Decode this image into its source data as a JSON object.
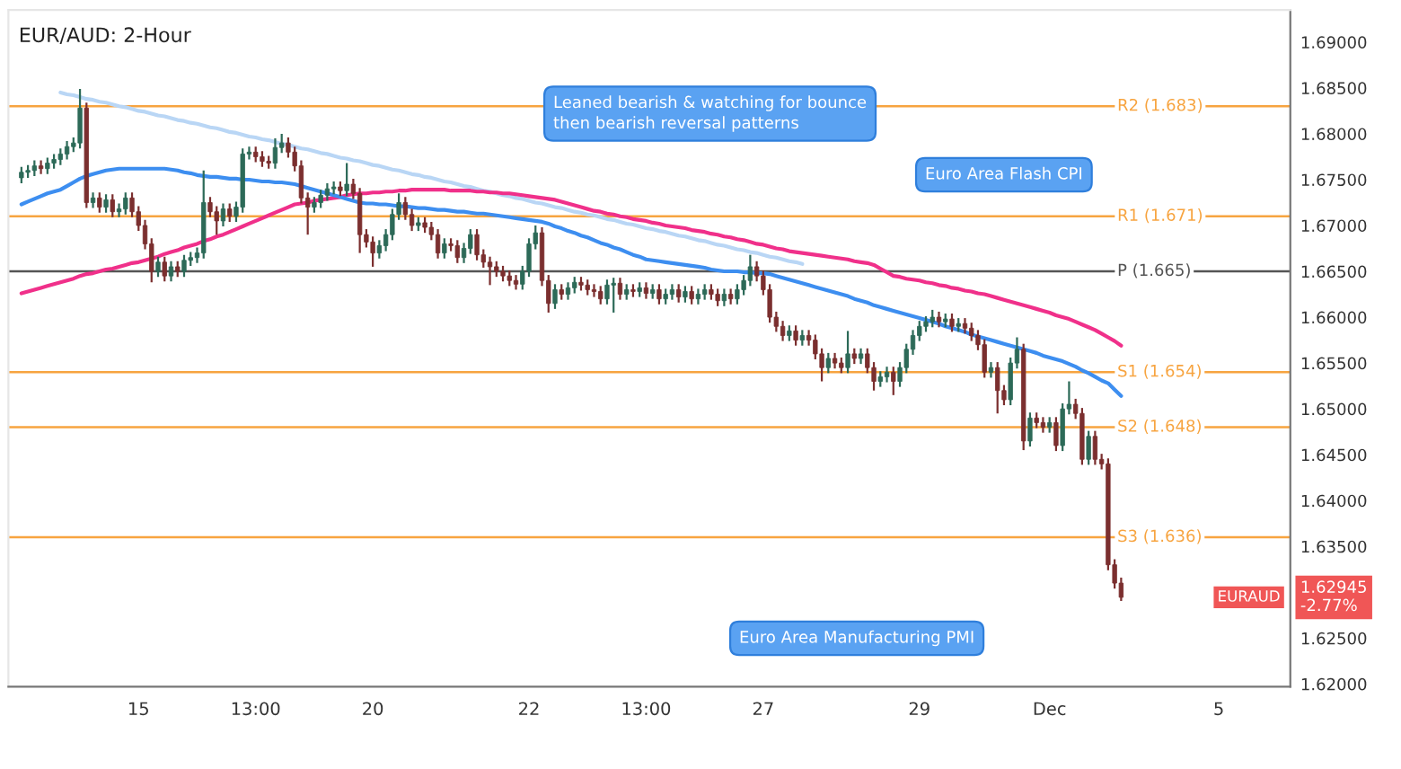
{
  "chart_data": {
    "type": "candlestick",
    "title": "EUR/AUD: 2-Hour",
    "categories": [
      null,
      null,
      null,
      null,
      null,
      null,
      null,
      null,
      null,
      null,
      null,
      null,
      null,
      null,
      null,
      null,
      null,
      null,
      "15",
      null,
      null,
      null,
      null,
      null,
      null,
      null,
      null,
      null,
      null,
      null,
      null,
      null,
      null,
      null,
      null,
      null,
      "13:00",
      null,
      null,
      null,
      null,
      null,
      null,
      null,
      null,
      null,
      null,
      null,
      null,
      null,
      null,
      null,
      null,
      null,
      "20",
      null,
      null,
      null,
      null,
      null,
      null,
      null,
      null,
      null,
      null,
      null,
      null,
      null,
      null,
      null,
      null,
      null,
      null,
      null,
      null,
      null,
      null,
      null,
      "22",
      null,
      null,
      null,
      null,
      null,
      null,
      null,
      null,
      null,
      null,
      null,
      null,
      null,
      null,
      null,
      null,
      null,
      "13:00",
      null,
      null,
      null,
      null,
      null,
      null,
      null,
      null,
      null,
      null,
      null,
      null,
      null,
      null,
      null,
      null,
      null,
      "27",
      null,
      null,
      null,
      null,
      null,
      null,
      null,
      null,
      null,
      null,
      null,
      null,
      null,
      null,
      null,
      null,
      null,
      null,
      null,
      null,
      null,
      null,
      null,
      "29",
      null,
      null,
      null,
      null,
      null,
      null,
      null,
      null,
      null,
      null,
      null,
      null,
      null,
      null,
      null,
      null,
      null,
      null,
      null,
      "Dec",
      null,
      null,
      null,
      null,
      null,
      null,
      null,
      null,
      null,
      null,
      null,
      null,
      null,
      null,
      null,
      null,
      null,
      null,
      null,
      null,
      null,
      null,
      null,
      null,
      null,
      "5",
      null,
      null,
      null,
      null,
      null,
      null,
      null,
      null,
      null,
      null
    ],
    "ohlc": [
      [
        1.6752,
        1.6764,
        1.6746,
        1.6758
      ],
      [
        1.6758,
        1.6766,
        1.6752,
        1.676
      ],
      [
        1.676,
        1.6771,
        1.6754,
        1.6765
      ],
      [
        1.6765,
        1.6771,
        1.6756,
        1.6762
      ],
      [
        1.6762,
        1.6774,
        1.6756,
        1.6768
      ],
      [
        1.6768,
        1.6778,
        1.6762,
        1.6772
      ],
      [
        1.6772,
        1.6784,
        1.6766,
        1.6778
      ],
      [
        1.6778,
        1.6792,
        1.6772,
        1.6786
      ],
      [
        1.6786,
        1.6796,
        1.678,
        1.679
      ],
      [
        1.679,
        1.6849,
        1.6784,
        1.6828
      ],
      [
        1.6828,
        1.6834,
        1.6719,
        1.6725
      ],
      [
        1.6725,
        1.6736,
        1.6719,
        1.673
      ],
      [
        1.673,
        1.6736,
        1.6714,
        1.672
      ],
      [
        1.672,
        1.6734,
        1.6714,
        1.6728
      ],
      [
        1.6728,
        1.6734,
        1.6709,
        1.6715
      ],
      [
        1.6715,
        1.6724,
        1.6709,
        1.6718
      ],
      [
        1.6718,
        1.6736,
        1.6712,
        1.673
      ],
      [
        1.673,
        1.6736,
        1.6709,
        1.6715
      ],
      [
        1.6715,
        1.6721,
        1.6694,
        1.67
      ],
      [
        1.67,
        1.6706,
        1.6674,
        1.668
      ],
      [
        1.668,
        1.6686,
        1.6638,
        1.665
      ],
      [
        1.665,
        1.6666,
        1.6644,
        1.666
      ],
      [
        1.666,
        1.6666,
        1.6639,
        1.6645
      ],
      [
        1.6645,
        1.6661,
        1.6639,
        1.6655
      ],
      [
        1.6655,
        1.6661,
        1.6644,
        1.665
      ],
      [
        1.665,
        1.6668,
        1.6644,
        1.6662
      ],
      [
        1.6662,
        1.6671,
        1.6656,
        1.6665
      ],
      [
        1.6665,
        1.6676,
        1.6659,
        1.667
      ],
      [
        1.667,
        1.676,
        1.6664,
        1.6725
      ],
      [
        1.6725,
        1.6731,
        1.6709,
        1.6715
      ],
      [
        1.6715,
        1.6721,
        1.669,
        1.6705
      ],
      [
        1.6705,
        1.6724,
        1.6699,
        1.6718
      ],
      [
        1.6718,
        1.6724,
        1.6704,
        1.671
      ],
      [
        1.671,
        1.6726,
        1.6704,
        1.672
      ],
      [
        1.672,
        1.6784,
        1.6714,
        1.6778
      ],
      [
        1.6778,
        1.6786,
        1.6772,
        1.678
      ],
      [
        1.678,
        1.6786,
        1.6769,
        1.6775
      ],
      [
        1.6775,
        1.6781,
        1.6764,
        1.677
      ],
      [
        1.677,
        1.6776,
        1.6762,
        1.6768
      ],
      [
        1.6768,
        1.6795,
        1.6762,
        1.6785
      ],
      [
        1.6785,
        1.68,
        1.6779,
        1.679
      ],
      [
        1.679,
        1.6796,
        1.6774,
        1.678
      ],
      [
        1.678,
        1.6786,
        1.6759,
        1.6765
      ],
      [
        1.6765,
        1.6771,
        1.6724,
        1.673
      ],
      [
        1.673,
        1.6736,
        1.669,
        1.672
      ],
      [
        1.672,
        1.6731,
        1.6714,
        1.6725
      ],
      [
        1.6725,
        1.6739,
        1.6719,
        1.6733
      ],
      [
        1.6733,
        1.6746,
        1.6727,
        1.674
      ],
      [
        1.674,
        1.6748,
        1.6734,
        1.6742
      ],
      [
        1.6742,
        1.6748,
        1.6732,
        1.6738
      ],
      [
        1.6738,
        1.6768,
        1.6732,
        1.6745
      ],
      [
        1.6745,
        1.6751,
        1.6729,
        1.6735
      ],
      [
        1.6735,
        1.6741,
        1.667,
        1.669
      ],
      [
        1.669,
        1.6696,
        1.6676,
        1.6682
      ],
      [
        1.6682,
        1.6688,
        1.6655,
        1.667
      ],
      [
        1.667,
        1.6684,
        1.6664,
        1.6678
      ],
      [
        1.6678,
        1.6696,
        1.6672,
        1.669
      ],
      [
        1.669,
        1.6718,
        1.6684,
        1.6712
      ],
      [
        1.6712,
        1.6735,
        1.6706,
        1.6725
      ],
      [
        1.6725,
        1.6731,
        1.6706,
        1.6712
      ],
      [
        1.6712,
        1.6718,
        1.6694,
        1.67
      ],
      [
        1.67,
        1.6709,
        1.6694,
        1.6703
      ],
      [
        1.6703,
        1.6709,
        1.6692,
        1.6698
      ],
      [
        1.6698,
        1.6704,
        1.6684,
        1.669
      ],
      [
        1.669,
        1.6696,
        1.6664,
        1.667
      ],
      [
        1.667,
        1.6686,
        1.6664,
        1.668
      ],
      [
        1.668,
        1.6686,
        1.6672,
        1.6678
      ],
      [
        1.6678,
        1.6684,
        1.6659,
        1.6665
      ],
      [
        1.6665,
        1.6681,
        1.6659,
        1.6675
      ],
      [
        1.6675,
        1.6696,
        1.6669,
        1.669
      ],
      [
        1.669,
        1.6696,
        1.6662,
        1.6668
      ],
      [
        1.6668,
        1.6674,
        1.6654,
        1.666
      ],
      [
        1.666,
        1.6666,
        1.6635,
        1.6655
      ],
      [
        1.6655,
        1.6661,
        1.6644,
        1.665
      ],
      [
        1.665,
        1.6656,
        1.6639,
        1.6645
      ],
      [
        1.6645,
        1.6651,
        1.6634,
        1.664
      ],
      [
        1.664,
        1.6646,
        1.663,
        1.6636
      ],
      [
        1.6636,
        1.6656,
        1.663,
        1.665
      ],
      [
        1.665,
        1.6686,
        1.6644,
        1.668
      ],
      [
        1.668,
        1.67,
        1.6674,
        1.6692
      ],
      [
        1.6692,
        1.6698,
        1.6634,
        1.664
      ],
      [
        1.664,
        1.6646,
        1.6605,
        1.6615
      ],
      [
        1.6615,
        1.6636,
        1.6609,
        1.663
      ],
      [
        1.663,
        1.6636,
        1.6619,
        1.6625
      ],
      [
        1.6625,
        1.6638,
        1.6619,
        1.6632
      ],
      [
        1.6632,
        1.6644,
        1.6626,
        1.6638
      ],
      [
        1.6638,
        1.6644,
        1.6629,
        1.6635
      ],
      [
        1.6635,
        1.6641,
        1.6624,
        1.663
      ],
      [
        1.663,
        1.6636,
        1.6622,
        1.6628
      ],
      [
        1.6628,
        1.6634,
        1.6614,
        1.662
      ],
      [
        1.662,
        1.6641,
        1.6614,
        1.6635
      ],
      [
        1.6635,
        1.6643,
        1.6605,
        1.6637
      ],
      [
        1.6637,
        1.6643,
        1.6619,
        1.6625
      ],
      [
        1.6625,
        1.6636,
        1.6619,
        1.663
      ],
      [
        1.663,
        1.6636,
        1.6622,
        1.6628
      ],
      [
        1.6628,
        1.6638,
        1.6622,
        1.6632
      ],
      [
        1.6632,
        1.6638,
        1.662,
        1.6626
      ],
      [
        1.6626,
        1.6636,
        1.662,
        1.663
      ],
      [
        1.663,
        1.6636,
        1.6614,
        1.662
      ],
      [
        1.662,
        1.6631,
        1.6614,
        1.6625
      ],
      [
        1.6625,
        1.6636,
        1.6619,
        1.663
      ],
      [
        1.663,
        1.6636,
        1.6616,
        1.6622
      ],
      [
        1.6622,
        1.6634,
        1.6616,
        1.6628
      ],
      [
        1.6628,
        1.6634,
        1.6614,
        1.662
      ],
      [
        1.662,
        1.6631,
        1.6614,
        1.6625
      ],
      [
        1.6625,
        1.6636,
        1.6619,
        1.663
      ],
      [
        1.663,
        1.6636,
        1.6619,
        1.6625
      ],
      [
        1.6625,
        1.6631,
        1.6612,
        1.6618
      ],
      [
        1.6618,
        1.6631,
        1.6612,
        1.6625
      ],
      [
        1.6625,
        1.6631,
        1.6614,
        1.662
      ],
      [
        1.662,
        1.6636,
        1.6614,
        1.663
      ],
      [
        1.663,
        1.6646,
        1.6624,
        1.664
      ],
      [
        1.664,
        1.6668,
        1.6634,
        1.6655
      ],
      [
        1.6655,
        1.6661,
        1.6639,
        1.6645
      ],
      [
        1.6645,
        1.6651,
        1.6624,
        1.663
      ],
      [
        1.663,
        1.6636,
        1.6594,
        1.66
      ],
      [
        1.66,
        1.6606,
        1.6584,
        1.659
      ],
      [
        1.659,
        1.6596,
        1.6574,
        1.658
      ],
      [
        1.658,
        1.6591,
        1.6574,
        1.6585
      ],
      [
        1.6585,
        1.6591,
        1.6569,
        1.6575
      ],
      [
        1.6575,
        1.6586,
        1.6569,
        1.658
      ],
      [
        1.658,
        1.6586,
        1.6569,
        1.6575
      ],
      [
        1.6575,
        1.6581,
        1.6554,
        1.656
      ],
      [
        1.656,
        1.6566,
        1.653,
        1.6545
      ],
      [
        1.6545,
        1.6561,
        1.6539,
        1.6555
      ],
      [
        1.6555,
        1.6561,
        1.6544,
        1.655
      ],
      [
        1.655,
        1.6556,
        1.6539,
        1.6545
      ],
      [
        1.6545,
        1.6585,
        1.6539,
        1.656
      ],
      [
        1.656,
        1.6566,
        1.6549,
        1.6555
      ],
      [
        1.6555,
        1.6566,
        1.6549,
        1.656
      ],
      [
        1.656,
        1.6566,
        1.6539,
        1.6545
      ],
      [
        1.6545,
        1.6551,
        1.652,
        1.653
      ],
      [
        1.653,
        1.6541,
        1.6524,
        1.6535
      ],
      [
        1.6535,
        1.6546,
        1.6529,
        1.654
      ],
      [
        1.654,
        1.6546,
        1.6515,
        1.653
      ],
      [
        1.653,
        1.6551,
        1.6524,
        1.6545
      ],
      [
        1.6545,
        1.6571,
        1.6539,
        1.6565
      ],
      [
        1.6565,
        1.6586,
        1.6559,
        1.658
      ],
      [
        1.658,
        1.6596,
        1.6574,
        1.659
      ],
      [
        1.659,
        1.6601,
        1.6584,
        1.6595
      ],
      [
        1.6595,
        1.6608,
        1.6589,
        1.66
      ],
      [
        1.66,
        1.6606,
        1.6589,
        1.6595
      ],
      [
        1.6595,
        1.6604,
        1.6589,
        1.6598
      ],
      [
        1.6598,
        1.6604,
        1.6584,
        1.659
      ],
      [
        1.659,
        1.6599,
        1.6584,
        1.6593
      ],
      [
        1.6593,
        1.6599,
        1.6582,
        1.6588
      ],
      [
        1.6588,
        1.6594,
        1.6574,
        1.658
      ],
      [
        1.658,
        1.6586,
        1.6564,
        1.657
      ],
      [
        1.657,
        1.6576,
        1.6534,
        1.654
      ],
      [
        1.654,
        1.6551,
        1.6534,
        1.6545
      ],
      [
        1.6545,
        1.6551,
        1.6495,
        1.652
      ],
      [
        1.652,
        1.6526,
        1.6504,
        1.651
      ],
      [
        1.651,
        1.6556,
        1.6504,
        1.655
      ],
      [
        1.655,
        1.6578,
        1.6544,
        1.6565
      ],
      [
        1.6565,
        1.6571,
        1.6455,
        1.6465
      ],
      [
        1.6465,
        1.6496,
        1.6459,
        1.649
      ],
      [
        1.649,
        1.6496,
        1.6479,
        1.6485
      ],
      [
        1.6485,
        1.6491,
        1.6474,
        1.648
      ],
      [
        1.648,
        1.6491,
        1.6474,
        1.6485
      ],
      [
        1.6485,
        1.6491,
        1.6454,
        1.646
      ],
      [
        1.646,
        1.6506,
        1.6454,
        1.65
      ],
      [
        1.65,
        1.653,
        1.6494,
        1.6505
      ],
      [
        1.6505,
        1.6511,
        1.6489,
        1.6495
      ],
      [
        1.6495,
        1.6501,
        1.6439,
        1.6445
      ],
      [
        1.6445,
        1.6476,
        1.6439,
        1.647
      ],
      [
        1.647,
        1.6476,
        1.6439,
        1.6445
      ],
      [
        1.6445,
        1.6451,
        1.6434,
        1.644
      ],
      [
        1.644,
        1.6446,
        1.6324,
        1.633
      ],
      [
        1.633,
        1.6336,
        1.6304,
        1.631
      ],
      [
        1.631,
        1.6316,
        1.62905,
        1.62945
      ],
      null,
      null,
      null,
      null,
      null,
      null,
      null,
      null,
      null,
      null,
      null,
      null,
      null,
      null,
      null,
      null,
      null,
      null,
      null,
      null,
      null,
      null,
      null,
      null,
      null
    ],
    "colors": [
      "#2d6a58",
      "#2d6a58",
      "#2d6a58",
      "#7b2f2f",
      "#2d6a58",
      "#2d6a58",
      "#2d6a58",
      "#2d6a58",
      "#2d6a58",
      "#2d6a58",
      "#7b2f2f",
      "#2d6a58",
      "#7b2f2f",
      "#2d6a58",
      "#7b2f2f",
      "#2d6a58",
      "#2d6a58",
      "#7b2f2f",
      "#7b2f2f",
      "#7b2f2f",
      "#7b2f2f",
      "#2d6a58",
      "#7b2f2f",
      "#2d6a58",
      "#7b2f2f",
      "#2d6a58",
      "#2d6a58",
      "#2d6a58",
      "#2d6a58",
      "#7b2f2f",
      "#7b2f2f",
      "#2d6a58",
      "#7b2f2f",
      "#2d6a58",
      "#2d6a58",
      "#2d6a58",
      "#7b2f2f",
      "#7b2f2f",
      "#7b2f2f",
      "#2d6a58",
      "#2d6a58",
      "#7b2f2f",
      "#7b2f2f",
      "#7b2f2f",
      "#7b2f2f",
      "#2d6a58",
      "#2d6a58",
      "#2d6a58",
      "#2d6a58",
      "#7b2f2f",
      "#2d6a58",
      "#7b2f2f",
      "#7b2f2f",
      "#7b2f2f",
      "#7b2f2f",
      "#2d6a58",
      "#2d6a58",
      "#2d6a58",
      "#2d6a58",
      "#7b2f2f",
      "#7b2f2f",
      "#2d6a58",
      "#7b2f2f",
      "#7b2f2f",
      "#7b2f2f",
      "#2d6a58",
      "#7b2f2f",
      "#7b2f2f",
      "#2d6a58",
      "#2d6a58",
      "#7b2f2f",
      "#7b2f2f",
      "#7b2f2f",
      "#7b2f2f",
      "#7b2f2f",
      "#7b2f2f",
      "#7b2f2f",
      "#2d6a58",
      "#2d6a58",
      "#2d6a58",
      "#7b2f2f",
      "#7b2f2f",
      "#2d6a58",
      "#7b2f2f",
      "#2d6a58",
      "#2d6a58",
      "#7b2f2f",
      "#7b2f2f",
      "#7b2f2f",
      "#7b2f2f",
      "#2d6a58",
      "#2d6a58",
      "#7b2f2f",
      "#2d6a58",
      "#7b2f2f",
      "#2d6a58",
      "#7b2f2f",
      "#2d6a58",
      "#7b2f2f",
      "#2d6a58",
      "#2d6a58",
      "#7b2f2f",
      "#2d6a58",
      "#7b2f2f",
      "#2d6a58",
      "#2d6a58",
      "#7b2f2f",
      "#7b2f2f",
      "#2d6a58",
      "#7b2f2f",
      "#2d6a58",
      "#2d6a58",
      "#2d6a58",
      "#7b2f2f",
      "#7b2f2f",
      "#7b2f2f",
      "#7b2f2f",
      "#7b2f2f",
      "#2d6a58",
      "#7b2f2f",
      "#2d6a58",
      "#7b2f2f",
      "#7b2f2f",
      "#7b2f2f",
      "#2d6a58",
      "#7b2f2f",
      "#7b2f2f",
      "#2d6a58",
      "#7b2f2f",
      "#2d6a58",
      "#7b2f2f",
      "#7b2f2f",
      "#2d6a58",
      "#2d6a58",
      "#7b2f2f",
      "#2d6a58",
      "#2d6a58",
      "#2d6a58",
      "#2d6a58",
      "#2d6a58",
      "#2d6a58",
      "#7b2f2f",
      "#2d6a58",
      "#7b2f2f",
      "#2d6a58",
      "#7b2f2f",
      "#7b2f2f",
      "#7b2f2f",
      "#7b2f2f",
      "#2d6a58",
      "#7b2f2f",
      "#7b2f2f",
      "#2d6a58",
      "#2d6a58",
      "#7b2f2f",
      "#2d6a58",
      "#7b2f2f",
      "#7b2f2f",
      "#2d6a58",
      "#7b2f2f",
      "#2d6a58",
      "#2d6a58",
      "#7b2f2f",
      "#7b2f2f",
      "#2d6a58",
      "#7b2f2f",
      "#7b2f2f",
      "#7b2f2f",
      "#7b2f2f",
      "#7b2f2f",
      null,
      null,
      null,
      null,
      null,
      null,
      null,
      null,
      null,
      null,
      null,
      null,
      null,
      null,
      null,
      null,
      null,
      null,
      null,
      null,
      null,
      null,
      null,
      null,
      null
    ],
    "series": [
      {
        "type": "line",
        "color": "#b9d6f5",
        "values": [
          null,
          null,
          null,
          null,
          null,
          null,
          1.6845,
          1.6843,
          1.6842,
          1.684,
          1.6838,
          1.6837,
          1.6835,
          1.6834,
          1.6832,
          1.683,
          1.6829,
          1.6827,
          1.6825,
          1.6824,
          1.6822,
          1.682,
          1.6819,
          1.6817,
          1.6815,
          1.6814,
          1.6812,
          1.6811,
          1.6809,
          1.6807,
          1.6806,
          1.6804,
          1.6802,
          1.6801,
          1.6799,
          1.6797,
          1.6796,
          1.6794,
          1.6793,
          1.6791,
          1.6789,
          1.6788,
          1.6786,
          1.6784,
          1.6783,
          1.6781,
          1.6779,
          1.6778,
          1.6776,
          1.6774,
          1.6773,
          1.6771,
          1.677,
          1.6768,
          1.6766,
          1.6765,
          1.6763,
          1.6761,
          1.676,
          1.6758,
          1.6756,
          1.6755,
          1.6753,
          1.6752,
          1.675,
          1.6748,
          1.6747,
          1.6745,
          1.6743,
          1.6742,
          1.674,
          1.6738,
          1.6737,
          1.6735,
          1.6733,
          1.6732,
          1.673,
          1.6729,
          1.6727,
          1.6725,
          1.6724,
          1.6722,
          1.672,
          1.6719,
          1.6717,
          1.6715,
          1.6714,
          1.6712,
          1.6711,
          1.6709,
          1.6707,
          1.6706,
          1.6704,
          1.6702,
          1.6701,
          1.6699,
          1.6697,
          1.6696,
          1.6694,
          1.6693,
          1.6691,
          1.6689,
          1.6688,
          1.6686,
          1.6684,
          1.6683,
          1.6681,
          1.6679,
          1.6678,
          1.6676,
          1.6674,
          1.6673,
          1.6671,
          1.667,
          1.6668,
          1.6666,
          1.6665,
          1.6663,
          1.6661,
          1.666,
          1.6658,
          null,
          null,
          null,
          null,
          null,
          null,
          null,
          null,
          null,
          null,
          null,
          null,
          null,
          null,
          null,
          null,
          null,
          null,
          null,
          null,
          null,
          null,
          null,
          null,
          null,
          null,
          null,
          null,
          null,
          null,
          null,
          null,
          null,
          null,
          null,
          null,
          null,
          null,
          null,
          null,
          null,
          null,
          null,
          null,
          null,
          null,
          null,
          null,
          null,
          null,
          null,
          null,
          null,
          null,
          null,
          null,
          null,
          null,
          null,
          null,
          null,
          null,
          null,
          null,
          null,
          null,
          null,
          null,
          null,
          null,
          null,
          null,
          null,
          null
        ]
      },
      {
        "type": "line",
        "color": "#f0308a",
        "values": [
          1.6626,
          1.6628,
          1.663,
          1.6632,
          1.6634,
          1.6636,
          1.6638,
          1.664,
          1.6642,
          1.6645,
          1.6647,
          1.6648,
          1.665,
          1.6652,
          1.6653,
          1.6655,
          1.6657,
          1.6659,
          1.666,
          1.6662,
          1.6664,
          1.6666,
          1.6669,
          1.6671,
          1.6673,
          1.6676,
          1.6678,
          1.668,
          1.6683,
          1.6685,
          1.6688,
          1.669,
          1.6693,
          1.6696,
          1.6699,
          1.6702,
          1.6705,
          1.6708,
          1.6711,
          1.6714,
          1.6717,
          1.672,
          1.6723,
          1.6724,
          1.6725,
          1.6727,
          1.6728,
          1.6729,
          1.673,
          1.6731,
          1.6733,
          1.6734,
          1.6735,
          1.6735,
          1.6736,
          1.6736,
          1.6737,
          1.6737,
          1.6738,
          1.6738,
          1.6739,
          1.6739,
          1.6739,
          1.6739,
          1.6739,
          1.6739,
          1.6738,
          1.6738,
          1.6738,
          1.6738,
          1.6737,
          1.6737,
          1.6736,
          1.6736,
          1.6735,
          1.6735,
          1.6734,
          1.6733,
          1.6732,
          1.6731,
          1.673,
          1.6729,
          1.6728,
          1.6726,
          1.6724,
          1.6722,
          1.672,
          1.6718,
          1.6716,
          1.6715,
          1.6713,
          1.6712,
          1.671,
          1.6709,
          1.6707,
          1.6706,
          1.6705,
          1.6703,
          1.6702,
          1.67,
          1.6699,
          1.6698,
          1.6697,
          1.6695,
          1.6694,
          1.6693,
          1.6691,
          1.669,
          1.6688,
          1.6687,
          1.6685,
          1.6684,
          1.6682,
          1.668,
          1.6679,
          1.6677,
          1.6675,
          1.6674,
          1.6672,
          1.6671,
          1.667,
          1.6669,
          1.6668,
          1.6667,
          1.6666,
          1.6665,
          1.6664,
          1.6663,
          1.6661,
          1.666,
          1.6659,
          1.6657,
          1.6653,
          1.6649,
          1.6645,
          1.6644,
          1.6642,
          1.6641,
          1.664,
          1.6638,
          1.6637,
          1.6635,
          1.6634,
          1.6632,
          1.6631,
          1.6629,
          1.6628,
          1.6626,
          1.6625,
          1.6623,
          1.6621,
          1.6619,
          1.6617,
          1.6615,
          1.6613,
          1.6611,
          1.6609,
          1.6607,
          1.6605,
          1.6602,
          1.66,
          1.6598,
          1.6595,
          1.6592,
          1.6589,
          1.6586,
          1.6582,
          1.6578,
          1.6574,
          1.6569,
          null,
          null,
          null,
          null,
          null,
          null,
          null,
          null,
          null,
          null,
          null,
          null,
          null,
          null,
          null,
          null,
          null,
          null,
          null,
          null,
          null,
          null,
          null,
          null,
          null
        ]
      },
      {
        "type": "line",
        "color": "#3d8ef0",
        "values": [
          1.6723,
          1.6726,
          1.6729,
          1.6732,
          1.6735,
          1.6737,
          1.6739,
          1.6743,
          1.6747,
          1.6751,
          1.6754,
          1.6756,
          1.6758,
          1.676,
          1.6761,
          1.6762,
          1.6762,
          1.6762,
          1.6762,
          1.6762,
          1.6762,
          1.6762,
          1.6762,
          1.6761,
          1.676,
          1.6758,
          1.6757,
          1.6755,
          1.6754,
          1.6753,
          1.6753,
          1.6752,
          1.6751,
          1.6751,
          1.675,
          1.675,
          1.6749,
          1.6748,
          1.6748,
          1.6747,
          1.6747,
          1.6746,
          1.6745,
          1.6743,
          1.6741,
          1.6739,
          1.6737,
          1.6735,
          1.6733,
          1.6731,
          1.6729,
          1.6727,
          1.6725,
          1.6724,
          1.6724,
          1.6723,
          1.6723,
          1.6722,
          1.6721,
          1.6721,
          1.672,
          1.6719,
          1.6719,
          1.6718,
          1.6717,
          1.6717,
          1.6716,
          1.6715,
          1.6715,
          1.6714,
          1.6713,
          1.6713,
          1.6712,
          1.6711,
          1.671,
          1.6709,
          1.6708,
          1.6707,
          1.6706,
          1.6705,
          1.6704,
          1.6702,
          1.6699,
          1.6697,
          1.6694,
          1.6692,
          1.6689,
          1.6687,
          1.6684,
          1.6681,
          1.6679,
          1.6676,
          1.6674,
          1.6671,
          1.6668,
          1.6666,
          1.6663,
          1.6662,
          1.6661,
          1.666,
          1.6659,
          1.6658,
          1.6657,
          1.6656,
          1.6655,
          1.6654,
          1.6652,
          1.6651,
          1.665,
          1.665,
          1.665,
          1.6649,
          1.6649,
          1.6648,
          1.6648,
          1.6647,
          1.6645,
          1.6643,
          1.6641,
          1.6639,
          1.6637,
          1.6635,
          1.6633,
          1.6631,
          1.6629,
          1.6627,
          1.6625,
          1.6623,
          1.662,
          1.6618,
          1.6616,
          1.6613,
          1.6611,
          1.6609,
          1.6607,
          1.6605,
          1.6603,
          1.6601,
          1.6599,
          1.6597,
          1.6595,
          1.6593,
          1.659,
          1.6588,
          1.6586,
          1.6584,
          1.6581,
          1.6579,
          1.6577,
          1.6575,
          1.6573,
          1.6571,
          1.6569,
          1.6567,
          1.6565,
          1.6563,
          1.6561,
          1.6558,
          1.6556,
          1.6554,
          1.6552,
          1.6549,
          1.6546,
          1.6542,
          1.6539,
          1.6535,
          1.6531,
          1.6528,
          1.6521,
          1.6514,
          null,
          null,
          null,
          null,
          null,
          null,
          null,
          null,
          null,
          null,
          null,
          null,
          null,
          null,
          null,
          null,
          null,
          null,
          null,
          null,
          null,
          null,
          null,
          null,
          null
        ]
      }
    ],
    "ylim": [
      1.6197,
      1.6935
    ],
    "yticks": [
      {
        "value": 1.62,
        "label": "1.62000"
      },
      {
        "value": 1.625,
        "label": "1.62500"
      },
      {
        "value": 1.635,
        "label": "1.63500"
      },
      {
        "value": 1.64,
        "label": "1.64000"
      },
      {
        "value": 1.645,
        "label": "1.64500"
      },
      {
        "value": 1.65,
        "label": "1.65000"
      },
      {
        "value": 1.655,
        "label": "1.65500"
      },
      {
        "value": 1.66,
        "label": "1.66000"
      },
      {
        "value": 1.665,
        "label": "1.66500"
      },
      {
        "value": 1.67,
        "label": "1.67000"
      },
      {
        "value": 1.675,
        "label": "1.67500"
      },
      {
        "value": 1.68,
        "label": "1.68000"
      },
      {
        "value": 1.685,
        "label": "1.68500"
      },
      {
        "value": 1.69,
        "label": "1.69000"
      }
    ],
    "ref_lines": [
      {
        "axis": "y",
        "value": 1.683,
        "label": "R2 (1.683)",
        "color": "#f7a440"
      },
      {
        "axis": "y",
        "value": 1.671,
        "label": "R1 (1.671)",
        "color": "#f7a440"
      },
      {
        "axis": "y",
        "value": 1.665,
        "label": "P (1.665)",
        "color": "#555555"
      },
      {
        "axis": "y",
        "value": 1.654,
        "label": "S1 (1.654)",
        "color": "#f7a440"
      },
      {
        "axis": "y",
        "value": 1.648,
        "label": "S2 (1.648)",
        "color": "#f7a440"
      },
      {
        "axis": "y",
        "value": 1.636,
        "label": "S3 (1.636)",
        "color": "#f7a440"
      }
    ],
    "annotations": [
      "Leaned bearish & watching for bounce\nthen bearish reversal patterns",
      "Euro Area Flash CPI",
      "Euro Area Manufacturing PMI",
      {
        "text": "EURAUD",
        "y": 1.62945
      },
      {
        "text": "1.62945\n-2.77%",
        "y": 1.62945
      }
    ],
    "grid": false,
    "legend": false
  }
}
